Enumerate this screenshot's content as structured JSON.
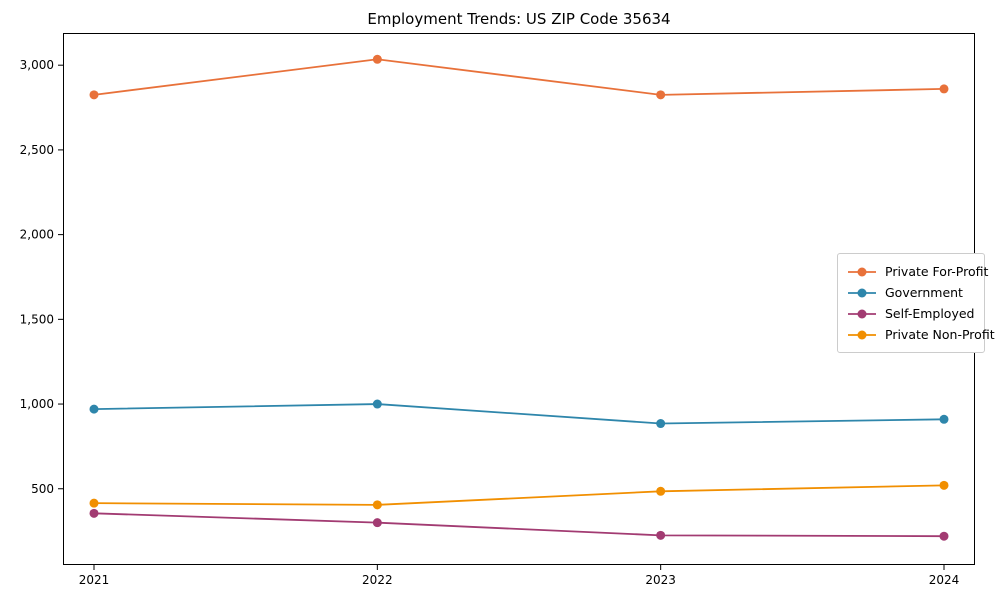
{
  "page": {
    "title": "Employment Trends: US ZIP Code 35634"
  },
  "chart_data": {
    "type": "line",
    "title": "Employment Trends: US ZIP Code 35634",
    "xlabel": "",
    "ylabel": "",
    "categories": [
      "2021",
      "2022",
      "2023",
      "2024"
    ],
    "x": [
      2021,
      2022,
      2023,
      2024
    ],
    "series": [
      {
        "name": "Private For-Profit",
        "color": "#e8713a",
        "values": [
          2825,
          3035,
          2825,
          2860
        ]
      },
      {
        "name": "Government",
        "color": "#2e86ab",
        "values": [
          970,
          1000,
          885,
          910
        ]
      },
      {
        "name": "Self-Employed",
        "color": "#a23b72",
        "values": [
          355,
          300,
          225,
          220
        ]
      },
      {
        "name": "Private Non-Profit",
        "color": "#f18f01",
        "values": [
          415,
          405,
          485,
          520
        ]
      }
    ],
    "ylim": [
      50,
      3190
    ],
    "yticks": [
      500,
      1000,
      1500,
      2000,
      2500,
      3000
    ],
    "grid": false,
    "legend_position": "center-right",
    "marker": "circle",
    "axis_color": "#000000"
  }
}
